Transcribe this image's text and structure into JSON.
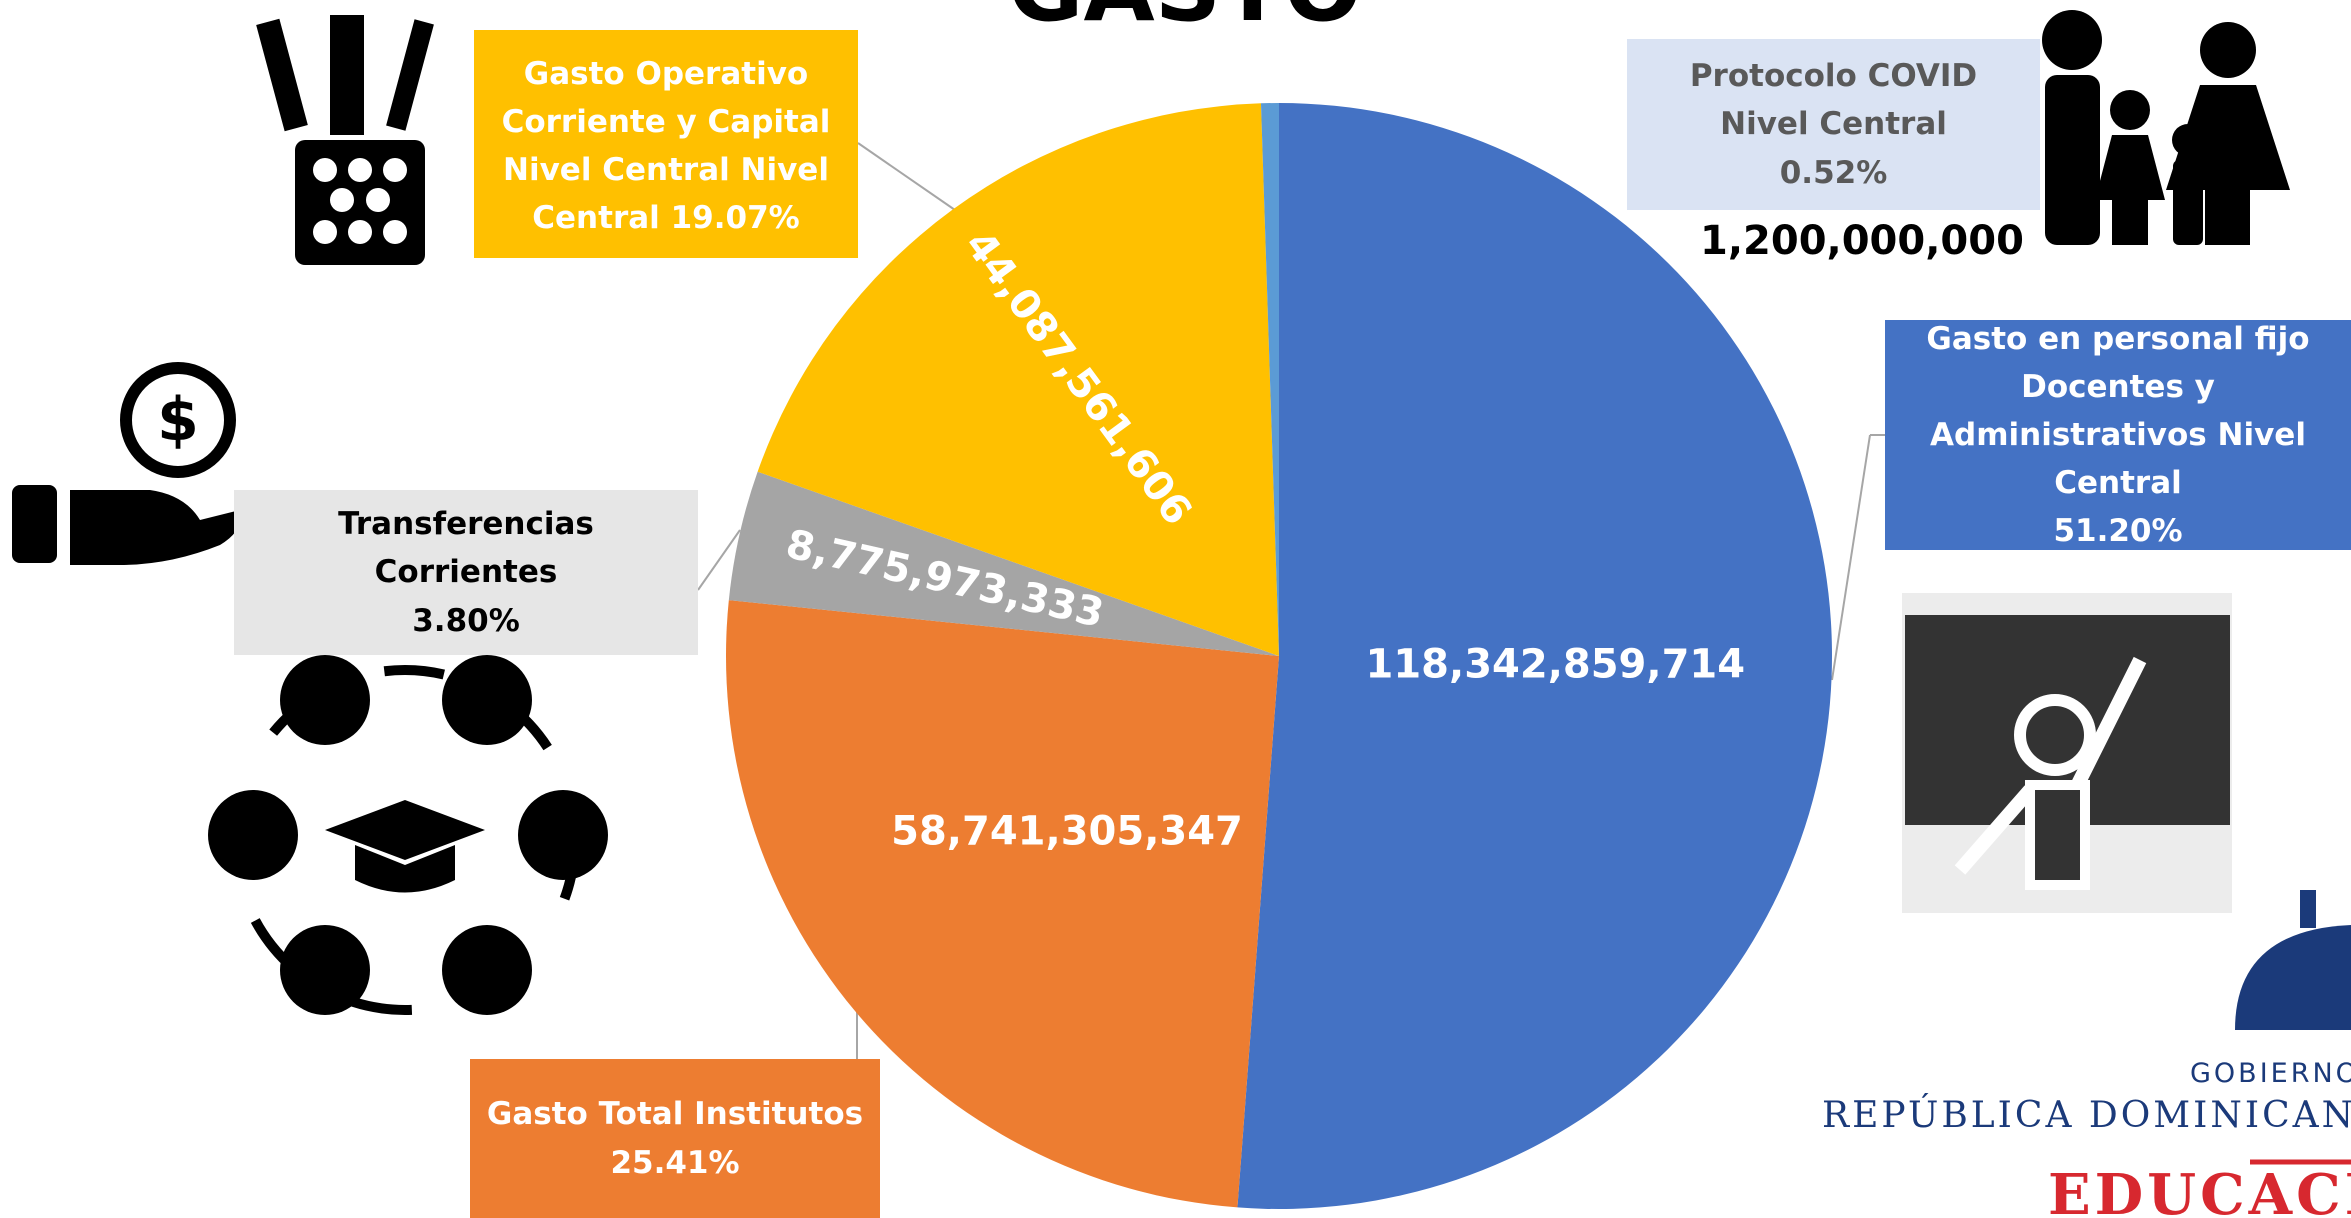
{
  "chart_data": {
    "type": "pie",
    "title": "GASTO",
    "categories": [
      "Gasto en personal fijo Docentes y Administrativos Nivel Central",
      "Gasto Total Institutos",
      "Transferencias Corrientes",
      "Gasto Operativo Corriente y Capital Nivel Central Nivel Central",
      "Protocolo COVID Nivel Central"
    ],
    "values": [
      118342859714,
      58741305347,
      8775973333,
      44087561606,
      1200000000
    ],
    "value_labels": [
      "118,342,859,714",
      "58,741,305,347",
      "8,775,973,333",
      "44,087,561,606",
      "1,200,000,000"
    ],
    "share_labels": [
      "51.20%",
      "25.41%",
      "3.80%",
      "19.07%",
      "0.52%"
    ],
    "colors": [
      "#4472c4",
      "#ed7d31",
      "#a5a5a5",
      "#ffc000",
      "#5b9bd5"
    ]
  },
  "branding": [
    "GOBIERNO DE",
    "REPÚBLICA DOMINICANA",
    "EDUCACIÓN"
  ]
}
